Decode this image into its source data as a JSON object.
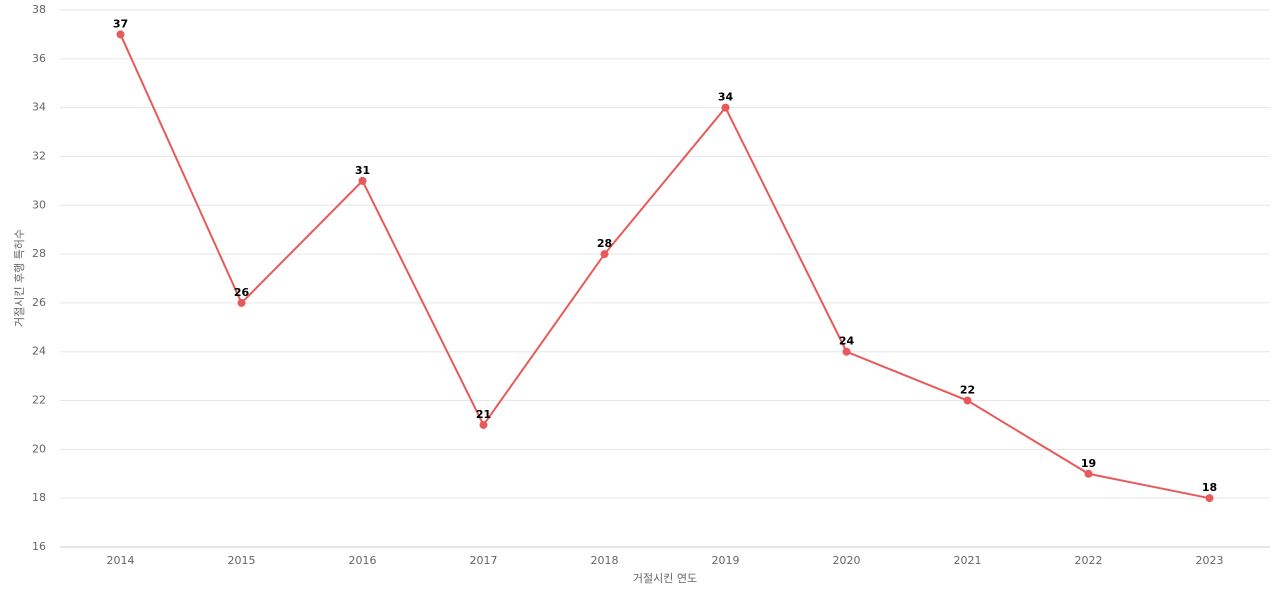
{
  "chart_data": {
    "type": "line",
    "x_label": "거절시킨 연도",
    "y_label": "거절시킨 후행 특허수",
    "categories": [
      "2014",
      "2015",
      "2016",
      "2017",
      "2018",
      "2019",
      "2020",
      "2021",
      "2022",
      "2023"
    ],
    "series": [
      {
        "name": "후행 특허수",
        "color": "#e85a5a",
        "values": [
          37,
          26,
          31,
          21,
          28,
          34,
          24,
          22,
          19,
          18
        ]
      }
    ],
    "ylim": [
      16,
      38
    ],
    "yticks": [
      16,
      18,
      20,
      22,
      24,
      26,
      28,
      30,
      32,
      34,
      36,
      38
    ],
    "grid": true
  }
}
